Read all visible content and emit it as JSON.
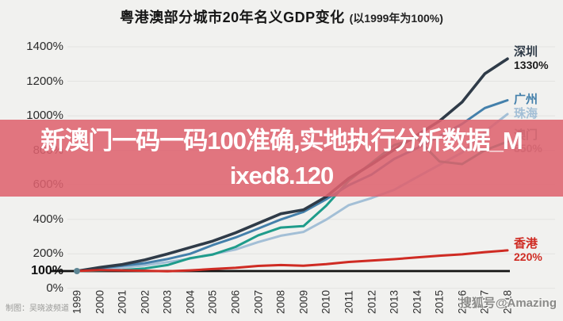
{
  "title": {
    "main": "粤港澳部分城市20年名义GDP变化",
    "sub": "(以1999年为100%)"
  },
  "overlay": {
    "line1": "新澳门一码一码100准确,实地执行分析数据_M",
    "line2": "ixed8.120",
    "bg_color": "#de626e",
    "text_color": "#ffffff"
  },
  "credits": {
    "left": "制图：吴晓波频道",
    "right": "搜狐号@Amazing"
  },
  "chart_data": {
    "type": "line",
    "title": "粤港澳部分城市20年名义GDP变化 (以1999年为100%)",
    "x": [
      "1999",
      "2000",
      "2001",
      "2002",
      "2003",
      "2004",
      "2005",
      "2006",
      "2007",
      "2008",
      "2009",
      "2010",
      "2011",
      "2012",
      "2013",
      "2014",
      "2015",
      "2016",
      "2017",
      "2018"
    ],
    "yticks": [
      0,
      100,
      200,
      400,
      600,
      800,
      1000,
      1200,
      1400
    ],
    "ytick_suffix": "%",
    "baseline": 100,
    "ylim": [
      0,
      1430
    ],
    "grid": "horizontal",
    "legend_position": "right-edge-labels",
    "series": [
      {
        "name": "深圳",
        "color": "#2f3b48",
        "label_color": "#2f3b48",
        "value_label": "1330%",
        "value_color": "#1c1c1c",
        "values": [
          100,
          121,
          138,
          165,
          199,
          237,
          274,
          322,
          377,
          432,
          455,
          531,
          638,
          718,
          804,
          887,
          970,
          1080,
          1244,
          1330
        ]
      },
      {
        "name": "广州",
        "color": "#4480ab",
        "label_color": "#4480ab",
        "value_label": "",
        "value_color": "#4480ab",
        "values": [
          100,
          116,
          131,
          146,
          170,
          200,
          251,
          295,
          346,
          399,
          443,
          516,
          598,
          659,
          750,
          812,
          880,
          953,
          1045,
          1090
        ]
      },
      {
        "name": "珠海",
        "color": "#a3bfd6",
        "label_color": "#a3bfd6",
        "value_label": "",
        "value_color": "#a3bfd6",
        "values": [
          100,
          109,
          120,
          134,
          152,
          172,
          198,
          225,
          268,
          305,
          327,
          398,
          482,
          523,
          571,
          644,
          716,
          787,
          907,
          1010
        ]
      },
      {
        "name": "澳门",
        "color": "#1f9c8b",
        "label_color": "#6f8e88",
        "value_label": "850%",
        "value_color": "#8a8a88",
        "values": [
          100,
          104,
          106,
          115,
          135,
          175,
          196,
          240,
          307,
          352,
          361,
          479,
          624,
          727,
          830,
          870,
          735,
          720,
          800,
          850
        ]
      },
      {
        "name": "香港",
        "color": "#cf2b23",
        "label_color": "#cf2b23",
        "value_label": "220%",
        "value_color": "#cf2b23",
        "values": [
          100,
          106,
          104,
          102,
          99,
          104,
          112,
          119,
          130,
          135,
          131,
          140,
          153,
          161,
          169,
          179,
          189,
          197,
          210,
          220
        ]
      }
    ],
    "start_dot_color": "#5e8694"
  }
}
